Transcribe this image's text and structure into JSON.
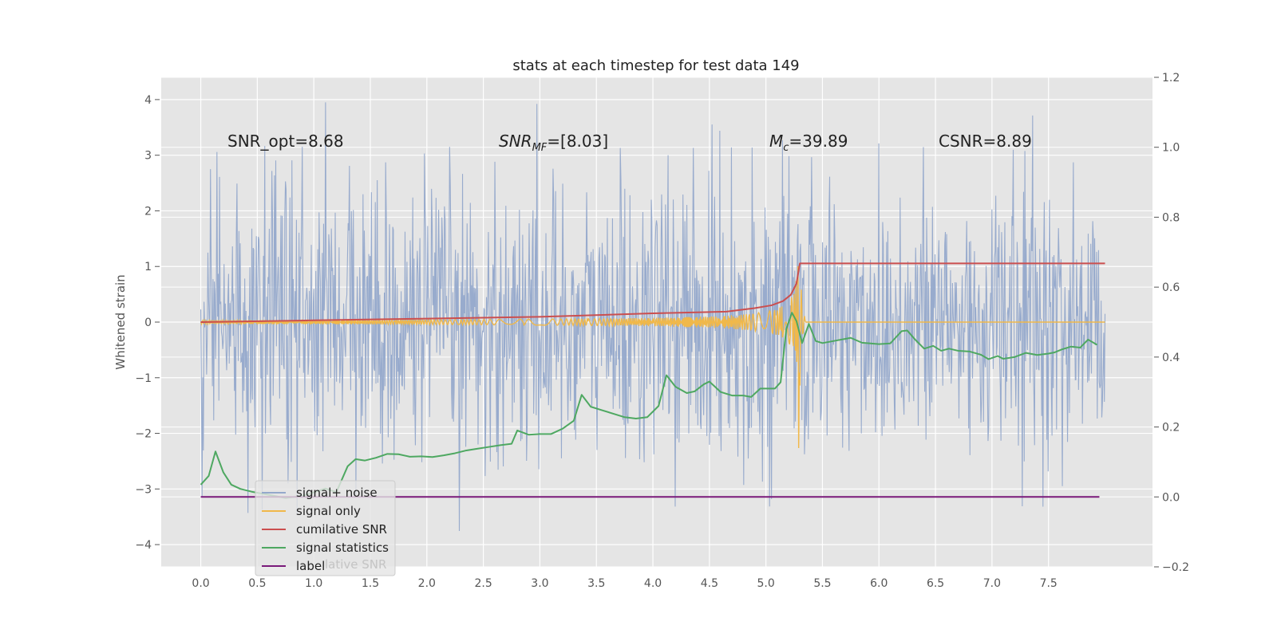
{
  "chart_data": {
    "type": "line",
    "title": "stats at each timestep for test data 149",
    "ylabel": "Whitened strain",
    "xlabel": "",
    "xlim": [
      -0.35,
      8.42
    ],
    "ylim": [
      -4.4,
      4.4
    ],
    "y2lim": [
      -0.2,
      1.2
    ],
    "x_ticks": [
      "0.0",
      "0.5",
      "1.0",
      "1.5",
      "2.0",
      "2.5",
      "3.0",
      "3.5",
      "4.0",
      "4.5",
      "5.0",
      "5.5",
      "6.0",
      "6.5",
      "7.0",
      "7.5"
    ],
    "y_ticks": [
      "4",
      "3",
      "2",
      "1",
      "0",
      "−1",
      "−2",
      "−3",
      "−4"
    ],
    "y2_ticks": [
      "1.2",
      "1.0",
      "0.8",
      "0.6",
      "0.4",
      "0.2",
      "0.0",
      "−0.2"
    ],
    "grid": true,
    "legend_position": "lower-left",
    "annotations": [
      {
        "text": "SNR_opt=8.68",
        "x": 0.2,
        "y": 3.1
      },
      {
        "text": "SNR_MF=[8.03]",
        "main": "SNR",
        "sub": "MF",
        "rest": "=[8.03]",
        "x": 2.6,
        "y": 3.1
      },
      {
        "text": "M_c=39.89",
        "main": "M",
        "sub": "c",
        "rest": "=39.89",
        "x": 5.0,
        "y": 3.1
      },
      {
        "text": "CSNR=8.89",
        "x": 6.5,
        "y": 3.1
      }
    ],
    "series": [
      {
        "name": "signal+ noise",
        "color": "#94a8cb",
        "axis": "left",
        "kind": "noise",
        "x_range": [
          0.0,
          8.0
        ],
        "amplitude_std": 1.0
      },
      {
        "name": "signal only",
        "color": "#f0b84a",
        "axis": "left",
        "kind": "chirp",
        "x_range": [
          0.0,
          8.0
        ],
        "merger_time": 5.29,
        "peak_amplitude": 2.3
      },
      {
        "name": "cumilative SNR",
        "color": "#cb4f4f",
        "axis": "right",
        "x": [
          0.0,
          1.0,
          2.0,
          3.0,
          4.0,
          4.65,
          4.9,
          5.05,
          5.15,
          5.22,
          5.27,
          5.3,
          5.35,
          8.0
        ],
        "y": [
          0.5,
          0.505,
          0.51,
          0.515,
          0.525,
          0.53,
          0.54,
          0.548,
          0.56,
          0.578,
          0.61,
          0.668,
          0.668,
          0.668
        ]
      },
      {
        "name": "signal statistics",
        "color": "#4ea861",
        "axis": "right",
        "x": [
          0.0,
          0.07,
          0.13,
          0.2,
          0.27,
          0.35,
          0.45,
          0.6,
          0.75,
          0.9,
          1.0,
          1.1,
          1.2,
          1.3,
          1.37,
          1.45,
          1.55,
          1.65,
          1.75,
          1.85,
          1.95,
          2.05,
          2.15,
          2.25,
          2.35,
          2.45,
          2.55,
          2.65,
          2.75,
          2.8,
          2.9,
          3.0,
          3.1,
          3.2,
          3.3,
          3.37,
          3.45,
          3.55,
          3.65,
          3.75,
          3.85,
          3.95,
          4.05,
          4.12,
          4.2,
          4.3,
          4.37,
          4.45,
          4.5,
          4.6,
          4.7,
          4.8,
          4.87,
          4.95,
          5.02,
          5.08,
          5.13,
          5.18,
          5.23,
          5.27,
          5.32,
          5.38,
          5.44,
          5.5,
          5.6,
          5.75,
          5.85,
          6.0,
          6.1,
          6.2,
          6.25,
          6.32,
          6.4,
          6.48,
          6.55,
          6.62,
          6.7,
          6.8,
          6.9,
          6.97,
          7.05,
          7.1,
          7.2,
          7.3,
          7.4,
          7.5,
          7.55,
          7.62,
          7.7,
          7.78,
          7.85,
          7.93
        ],
        "y": [
          0.035,
          0.06,
          0.13,
          0.07,
          0.035,
          0.023,
          0.015,
          0.006,
          -0.003,
          0.003,
          0.013,
          0.024,
          0.014,
          0.088,
          0.108,
          0.104,
          0.112,
          0.123,
          0.122,
          0.115,
          0.116,
          0.114,
          0.119,
          0.125,
          0.133,
          0.138,
          0.143,
          0.148,
          0.152,
          0.19,
          0.178,
          0.18,
          0.18,
          0.195,
          0.218,
          0.292,
          0.258,
          0.248,
          0.238,
          0.228,
          0.224,
          0.228,
          0.26,
          0.348,
          0.315,
          0.297,
          0.302,
          0.322,
          0.33,
          0.3,
          0.29,
          0.29,
          0.286,
          0.31,
          0.31,
          0.31,
          0.328,
          0.48,
          0.527,
          0.503,
          0.44,
          0.495,
          0.446,
          0.44,
          0.446,
          0.455,
          0.441,
          0.437,
          0.439,
          0.474,
          0.476,
          0.45,
          0.424,
          0.432,
          0.418,
          0.424,
          0.418,
          0.416,
          0.407,
          0.394,
          0.403,
          0.395,
          0.4,
          0.412,
          0.406,
          0.41,
          0.413,
          0.422,
          0.43,
          0.427,
          0.45,
          0.435
        ]
      },
      {
        "name": "label",
        "color": "#7a1a7a",
        "axis": "right",
        "x": [
          0.0,
          7.95
        ],
        "y": [
          0.0,
          0.0
        ]
      }
    ],
    "legend": [
      {
        "label": "signal+ noise",
        "color": "#94a8cb"
      },
      {
        "label": "signal only",
        "color": "#f0b84a"
      },
      {
        "label": "cumilative SNR",
        "color": "#cb4f4f"
      },
      {
        "label": "signal statistics",
        "color": "#4ea861"
      },
      {
        "label": "label",
        "color": "#7a1a7a"
      }
    ],
    "legend_hidden_text": "lative SNR",
    "colors": {
      "axes_bg": "#e5e5e5",
      "grid": "#ffffff",
      "tick_text": "#555555",
      "title_text": "#222222"
    }
  }
}
